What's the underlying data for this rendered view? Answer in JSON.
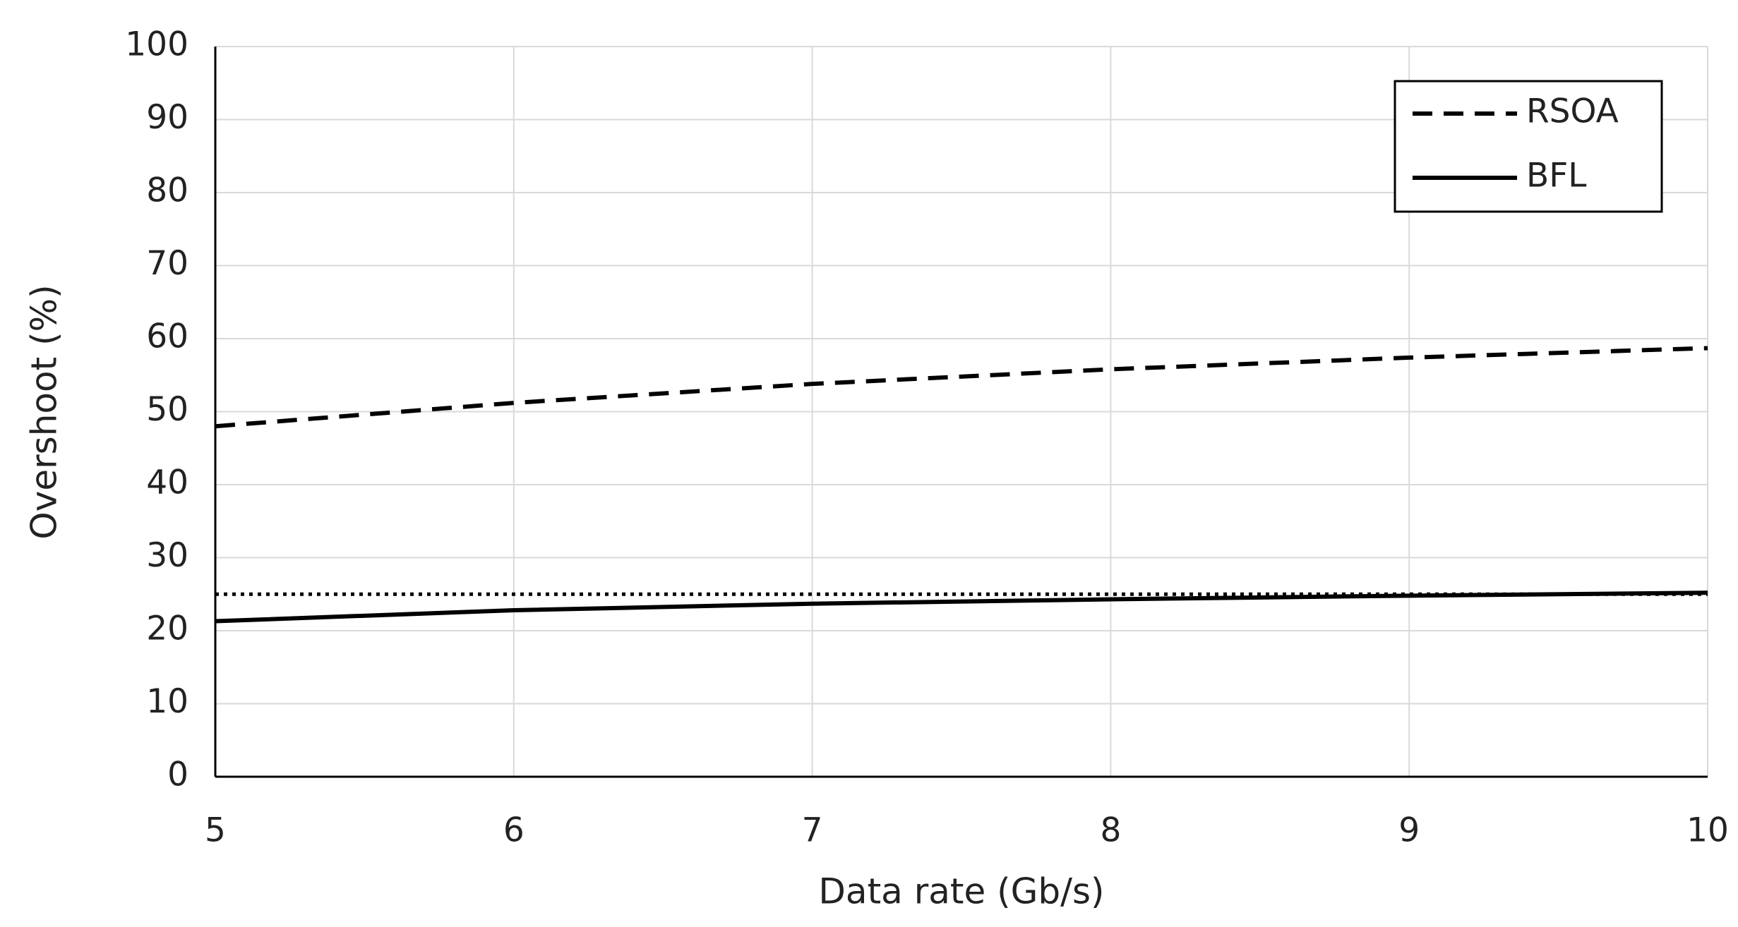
{
  "chart_data": {
    "type": "line",
    "x_label": "Data rate (Gb/s)",
    "y_label": "Overshoot (%)",
    "x": [
      5,
      6,
      7,
      8,
      9,
      10
    ],
    "series": [
      {
        "name": "RSOA",
        "color": "#000000",
        "dash": "dashed",
        "values": [
          48,
          51.2,
          53.8,
          55.8,
          57.4,
          58.7
        ]
      },
      {
        "name": "BFL",
        "color": "#000000",
        "dash": "solid",
        "values": [
          21.3,
          22.8,
          23.7,
          24.3,
          24.8,
          25.2
        ]
      }
    ],
    "reference_line": {
      "value": 25,
      "color": "#000000",
      "dash": "dotted"
    },
    "xlim": [
      5,
      10
    ],
    "xticks": [
      5,
      6,
      7,
      8,
      9,
      10
    ],
    "ylim": [
      0,
      100
    ],
    "yticks": [
      0,
      10,
      20,
      30,
      40,
      50,
      60,
      70,
      80,
      90,
      100
    ],
    "grid": true,
    "legend": "upper right"
  }
}
